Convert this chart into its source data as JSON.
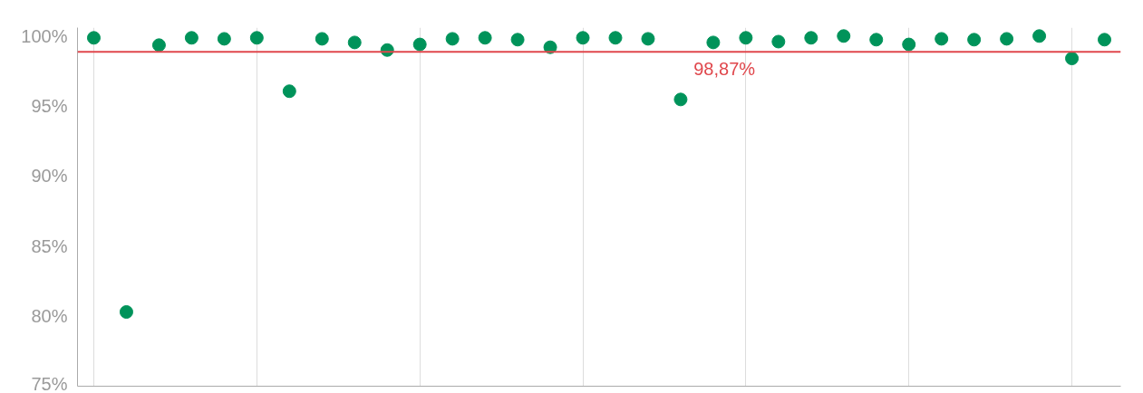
{
  "chart_data": {
    "type": "scatter",
    "categories": [
      null,
      null,
      null,
      null,
      null,
      null,
      null,
      null,
      null,
      null,
      null,
      null,
      null,
      null,
      null,
      null,
      null,
      null,
      null,
      null,
      null,
      null,
      null,
      null,
      null,
      null,
      null,
      null,
      null,
      null,
      null,
      null
    ],
    "series": [
      {
        "color": "#00935a",
        "values": [
          99.87,
          80.3,
          99.35,
          99.87,
          99.8,
          99.87,
          96.06,
          99.8,
          99.54,
          99.0,
          99.4,
          99.8,
          99.87,
          99.74,
          99.2,
          99.87,
          99.87,
          99.8,
          95.47,
          99.54,
          99.87,
          99.6,
          99.87,
          100,
          99.74,
          99.4,
          99.8,
          99.74,
          99.8,
          100,
          98.4,
          99.74
        ]
      }
    ],
    "marker": "circle",
    "ylim": [
      75,
      100.6
    ],
    "yticks": [
      {
        "value": 75,
        "label": "75%"
      },
      {
        "value": 80,
        "label": "80%"
      },
      {
        "value": 85,
        "label": "85%"
      },
      {
        "value": 90,
        "label": "90%"
      },
      {
        "value": 95,
        "label": "95%"
      },
      {
        "value": 100,
        "label": "100%"
      }
    ],
    "grid": "x",
    "tick_labels": "y",
    "ref_lines": [
      {
        "axis": "y",
        "value": 98.87,
        "label": "98,87%",
        "color": "#e0474c"
      }
    ]
  }
}
